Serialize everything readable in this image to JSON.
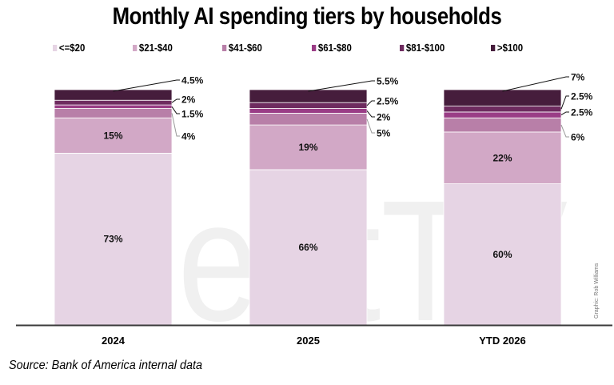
{
  "chart_data": {
    "type": "bar",
    "stacked": true,
    "title": "Monthly AI spending tiers by households",
    "categories": [
      "2024",
      "2025",
      "YTD 2026"
    ],
    "series": [
      {
        "name": "<=$20",
        "color": "#e6d4e4",
        "values": [
          73,
          66,
          60
        ]
      },
      {
        "name": "$21-$40",
        "color": "#d2a8c6",
        "values": [
          15,
          19,
          22
        ]
      },
      {
        "name": "$41-$60",
        "color": "#b87fa8",
        "values": [
          4,
          5,
          6
        ]
      },
      {
        "name": "$61-$80",
        "color": "#9a3d86",
        "values": [
          1.5,
          2,
          2.5
        ]
      },
      {
        "name": "$81-$100",
        "color": "#6e2b5f",
        "values": [
          2,
          2.5,
          2.5
        ]
      },
      {
        "name": ">$100",
        "color": "#461d3c",
        "values": [
          4.5,
          5.5,
          7
        ]
      }
    ],
    "data_labels": {
      "inside": [
        {
          "series": 0,
          "labels": [
            "73%",
            "66%",
            "60%"
          ]
        },
        {
          "series": 1,
          "labels": [
            "15%",
            "19%",
            "22%"
          ]
        }
      ],
      "callout": [
        {
          "series": 2,
          "labels": [
            "4%",
            "5%",
            "6%"
          ]
        },
        {
          "series": 3,
          "labels": [
            "1.5%",
            "2%",
            "2.5%"
          ]
        },
        {
          "series": 4,
          "labels": [
            "2%",
            "2.5%",
            "2.5%"
          ]
        },
        {
          "series": 5,
          "labels": [
            "4.5%",
            "5.5%",
            "7%"
          ]
        }
      ]
    },
    "xlabel": "",
    "ylabel": "",
    "ylim": [
      0,
      100
    ],
    "grid": false,
    "legend": "top"
  },
  "source": "Source: Bank of America internal data",
  "credit": "Graphic: Rob Williams",
  "watermark": "BeetTV"
}
